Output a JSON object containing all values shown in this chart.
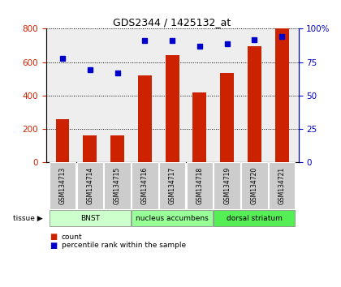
{
  "title": "GDS2344 / 1425132_at",
  "samples": [
    "GSM134713",
    "GSM134714",
    "GSM134715",
    "GSM134716",
    "GSM134717",
    "GSM134718",
    "GSM134719",
    "GSM134720",
    "GSM134721"
  ],
  "counts": [
    260,
    160,
    160,
    520,
    640,
    420,
    535,
    695,
    800
  ],
  "percentiles": [
    78,
    69,
    67,
    91,
    91,
    87,
    89,
    92,
    94
  ],
  "bar_color": "#cc2200",
  "dot_color": "#0000cc",
  "ylim_left": [
    0,
    800
  ],
  "ylim_right": [
    0,
    100
  ],
  "yticks_left": [
    0,
    200,
    400,
    600,
    800
  ],
  "yticks_right": [
    0,
    25,
    50,
    75,
    100
  ],
  "ytick_labels_right": [
    "0",
    "25",
    "50",
    "75",
    "100%"
  ],
  "groups": [
    {
      "label": "BNST",
      "start": 0,
      "end": 3,
      "color": "#ccffcc"
    },
    {
      "label": "nucleus accumbens",
      "start": 3,
      "end": 6,
      "color": "#99ff99"
    },
    {
      "label": "dorsal striatum",
      "start": 6,
      "end": 9,
      "color": "#55ee55"
    }
  ],
  "tissue_label": "tissue",
  "legend_count_label": "count",
  "legend_pct_label": "percentile rank within the sample",
  "bg_plot": "#eeeeee",
  "grid_color": "black",
  "bar_width": 0.5,
  "sample_box_color": "#cccccc"
}
